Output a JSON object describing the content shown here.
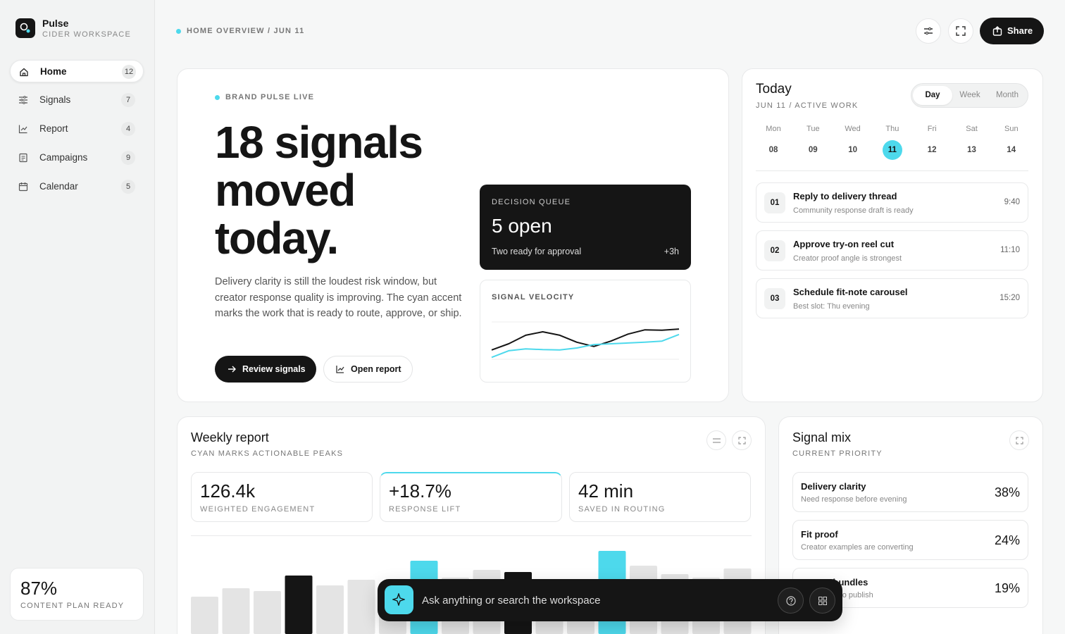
{
  "sidebar": {
    "brand": "Pulse",
    "workspace": "CIDER WORKSPACE",
    "active_nav": 0,
    "nav": [
      {
        "label": "Home",
        "count": 12
      },
      {
        "label": "Signals",
        "count": 7
      },
      {
        "label": "Report",
        "count": 4
      },
      {
        "label": "Campaigns",
        "count": 9
      },
      {
        "label": "Calendar",
        "count": 5
      }
    ],
    "footer": {
      "value": "87%",
      "label": "CONTENT PLAN READY"
    }
  },
  "header": {
    "breadcrumb": "HOME OVERVIEW / JUN 11",
    "share": "Share"
  },
  "hero": {
    "eyebrow": "BRAND PULSE LIVE",
    "headline": "18 signals moved today.",
    "body": "Delivery clarity is still the loudest risk window, but creator response quality is improving. The cyan accent marks the work that is ready to route, approve, or ship.",
    "primary_action": "Review signals",
    "secondary_action": "Open report"
  },
  "decision_queue": {
    "label": "DECISION QUEUE",
    "value": "5 open",
    "note": "Two ready for approval",
    "delta": "+3h"
  },
  "signal_velocity": {
    "title": "SIGNAL VELOCITY",
    "ylim": [
      0,
      100
    ],
    "series": [
      {
        "color": "#151515",
        "values": [
          24,
          40,
          62,
          71,
          62,
          44,
          33,
          47,
          65,
          76,
          75,
          78
        ]
      },
      {
        "color": "#4dd9ec",
        "values": [
          5,
          22,
          27,
          25,
          24,
          29,
          38,
          40,
          42,
          44,
          47,
          64
        ]
      }
    ]
  },
  "today": {
    "title": "Today",
    "subtitle": "JUN 11 / ACTIVE WORK",
    "tabs": [
      "Day",
      "Week",
      "Month"
    ],
    "active_tab": 0,
    "days": [
      {
        "name": "Mon",
        "date": "08"
      },
      {
        "name": "Tue",
        "date": "09"
      },
      {
        "name": "Wed",
        "date": "10"
      },
      {
        "name": "Thu",
        "date": "11"
      },
      {
        "name": "Fri",
        "date": "12"
      },
      {
        "name": "Sat",
        "date": "13"
      },
      {
        "name": "Sun",
        "date": "14"
      }
    ],
    "selected_day": 3,
    "tasks": [
      {
        "number": "01",
        "title": "Reply to delivery thread",
        "note": "Community response draft is ready",
        "time": "9:40"
      },
      {
        "number": "02",
        "title": "Approve try-on reel cut",
        "note": "Creator proof angle is strongest",
        "time": "11:10"
      },
      {
        "number": "03",
        "title": "Schedule fit-note carousel",
        "note": "Best slot: Thu evening",
        "time": "15:20"
      }
    ]
  },
  "weekly_report": {
    "title": "Weekly report",
    "subtitle": "CYAN MARKS ACTIONABLE PEAKS",
    "stats": [
      {
        "value": "126.4k",
        "label": "WEIGHTED ENGAGEMENT"
      },
      {
        "value": "+18.7%",
        "label": "RESPONSE LIFT"
      },
      {
        "value": "42 min",
        "label": "SAVED IN ROUTING"
      }
    ],
    "highlight_stat": 1,
    "bars": {
      "ylim": [
        0,
        130
      ],
      "values": [
        43,
        55,
        51,
        73,
        59,
        67,
        62,
        94,
        70,
        81,
        78,
        66,
        68,
        108,
        87,
        75,
        70,
        83
      ],
      "colors": [
        "#e4e4e4",
        "#e4e4e4",
        "#e4e4e4",
        "#151515",
        "#e4e4e4",
        "#e4e4e4",
        "#e4e4e4",
        "#4dd9ec",
        "#e4e4e4",
        "#e4e4e4",
        "#151515",
        "#e4e4e4",
        "#e4e4e4",
        "#4dd9ec",
        "#e4e4e4",
        "#e4e4e4",
        "#e4e4e4",
        "#e4e4e4"
      ]
    }
  },
  "signal_mix": {
    "title": "Signal mix",
    "subtitle": "CURRENT PRIORITY",
    "items": [
      {
        "title": "Delivery clarity",
        "note": "Need response before evening",
        "share": "38%"
      },
      {
        "title": "Fit proof",
        "note": "Creator examples are converting",
        "share": "24%"
      },
      {
        "title": "Starter bundles",
        "note": "Sets ready to publish",
        "share": "19%"
      }
    ]
  },
  "search": {
    "placeholder": "Ask anything or search the workspace"
  }
}
